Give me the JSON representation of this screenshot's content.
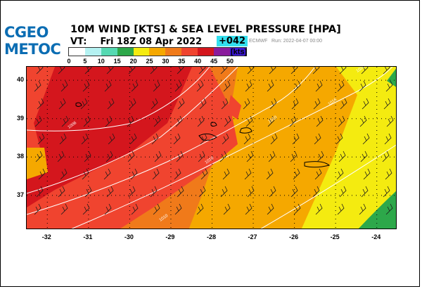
{
  "logo": {
    "line1": "CGEO",
    "line2": "METOC"
  },
  "title": "10M WIND [KTS] & SEA LEVEL PRESSURE [HPA]",
  "valid_time": {
    "prefix": "VT:",
    "date": "Fri 18Z 08 Apr 2022",
    "lead": "+042"
  },
  "model": "ECMWF",
  "run": "Run: 2022-04-07 00:00",
  "legend": {
    "unit": "[kts]",
    "bins": [
      0,
      5,
      10,
      15,
      20,
      25,
      30,
      35,
      40,
      45,
      50
    ],
    "colors": [
      "#ffffff",
      "#b5f2f2",
      "#55d9b2",
      "#2da84a",
      "#f4eb10",
      "#f5a800",
      "#f07a1a",
      "#f0442f",
      "#d4161d",
      "#8a1b9c",
      "#3b17d4"
    ]
  },
  "map": {
    "lon_range": [
      -32.5,
      -23.5
    ],
    "lat_range": [
      36.1,
      40.35
    ],
    "lon_ticks": [
      "-32",
      "-31",
      "-30",
      "-29",
      "-28",
      "-27",
      "-26",
      "-25",
      "-24"
    ],
    "lat_ticks": [
      "40",
      "39",
      "38",
      "37"
    ],
    "isobar_labels": [
      "1020",
      "1016",
      "1010",
      "1010",
      "1006",
      "1010"
    ],
    "wind_colors": {
      "calm": "#f4eb10",
      "moderate": "#f5a800",
      "strong": "#f07a1a",
      "fresh": "#f0442f",
      "gale": "#d4161d",
      "sea_green": "#2da84a"
    }
  }
}
